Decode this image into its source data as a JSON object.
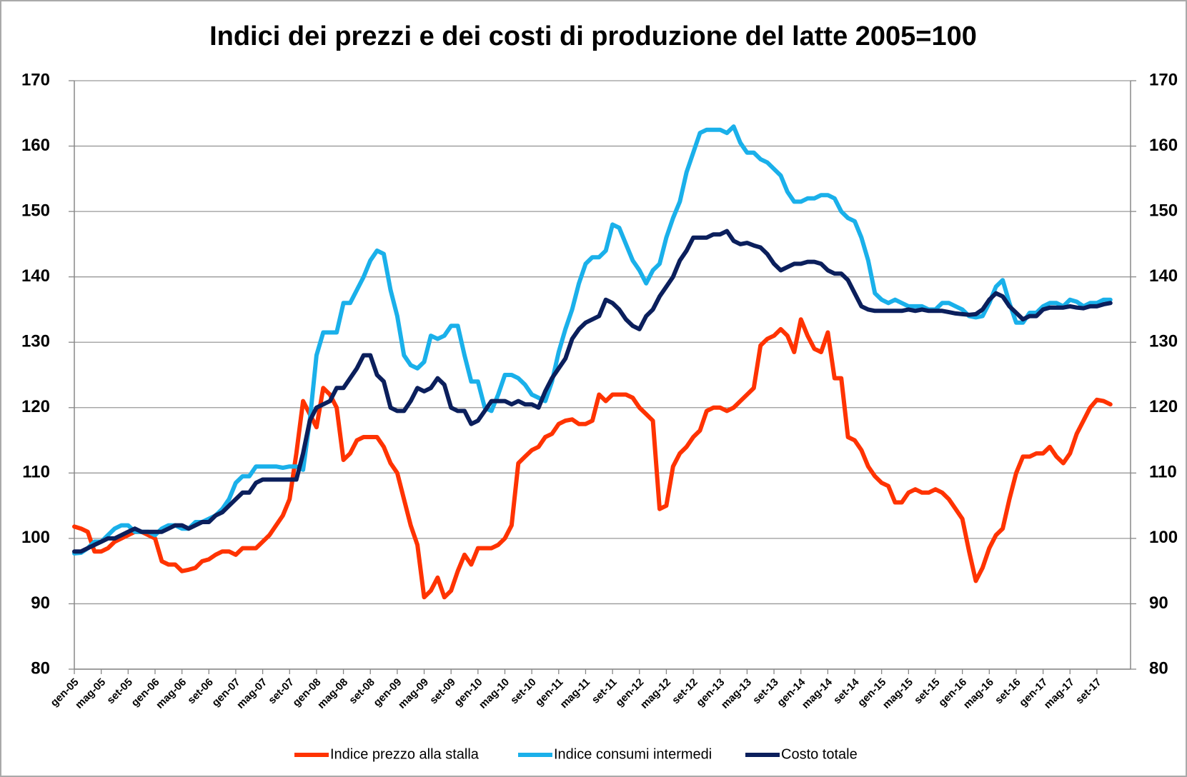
{
  "chart_data": {
    "type": "line",
    "title": "Indici dei prezzi e dei costi di produzione del latte 2005=100",
    "categories": [
      "gen-05",
      null,
      null,
      null,
      "mag-05",
      null,
      null,
      null,
      "set-05",
      null,
      null,
      null,
      "gen-06",
      null,
      null,
      null,
      "mag-06",
      null,
      null,
      null,
      "set-06",
      null,
      null,
      null,
      "gen-07",
      null,
      null,
      null,
      "mag-07",
      null,
      null,
      null,
      "set-07",
      null,
      null,
      null,
      "gen-08",
      null,
      null,
      null,
      "mag-08",
      null,
      null,
      null,
      "set-08",
      null,
      null,
      null,
      "gen-09",
      null,
      null,
      null,
      "mag-09",
      null,
      null,
      null,
      "set-09",
      null,
      null,
      null,
      "gen-10",
      null,
      null,
      null,
      "mag-10",
      null,
      null,
      null,
      "set-10",
      null,
      null,
      null,
      "gen-11",
      null,
      null,
      null,
      "mag-11",
      null,
      null,
      null,
      "set-11",
      null,
      null,
      null,
      "gen-12",
      null,
      null,
      null,
      "mag-12",
      null,
      null,
      null,
      "set-12",
      null,
      null,
      null,
      "gen-13",
      null,
      null,
      null,
      "mag-13",
      null,
      null,
      null,
      "set-13",
      null,
      null,
      null,
      "gen-14",
      null,
      null,
      null,
      "mag-14",
      null,
      null,
      null,
      "set-14",
      null,
      null,
      null,
      "gen-15",
      null,
      null,
      null,
      "mag-15",
      null,
      null,
      null,
      "set-15",
      null,
      null,
      null,
      "gen-16",
      null,
      null,
      null,
      "mag-16",
      null,
      null,
      null,
      "set-16",
      null,
      null,
      null,
      "gen-17",
      null,
      null,
      null,
      "mag-17",
      null,
      null,
      null,
      "set-17",
      null,
      null
    ],
    "series": [
      {
        "name": "Indice prezzo alla stalla",
        "color": "#ff3300",
        "values": [
          101.8,
          101.5,
          101,
          98,
          98,
          98.5,
          99.5,
          100,
          100.5,
          101,
          101,
          100.5,
          100,
          96.5,
          96,
          96,
          95,
          95.2,
          95.5,
          96.5,
          96.8,
          97.5,
          98,
          98,
          97.5,
          98.5,
          98.5,
          98.5,
          99.5,
          100.5,
          102,
          103.5,
          106,
          113,
          121,
          119,
          117,
          123,
          122,
          120,
          112,
          113,
          115,
          115.5,
          115.5,
          115.5,
          114,
          111.5,
          110,
          106,
          102,
          99,
          91,
          92,
          94,
          91,
          92,
          95,
          97.5,
          96,
          98.5,
          98.5,
          98.5,
          99,
          100,
          102,
          111.5,
          112.5,
          113.5,
          114,
          115.5,
          116,
          117.5,
          118,
          118.2,
          117.5,
          117.5,
          118,
          122,
          121,
          122,
          122,
          122,
          121.5,
          120,
          119,
          118,
          104.5,
          105,
          111,
          113,
          114,
          115.5,
          116.5,
          119.5,
          120,
          120,
          119.5,
          120,
          121,
          122,
          123,
          129.5,
          130.5,
          131,
          132,
          131,
          128.5,
          133.5,
          131,
          129,
          128.5,
          131.5,
          124.5,
          124.5,
          115.5,
          115,
          113.5,
          111,
          109.5,
          108.5,
          108,
          105.5,
          105.5,
          107,
          107.5,
          107,
          107,
          107.5,
          107,
          106,
          104.5,
          103,
          98,
          93.5,
          95.5,
          98.5,
          100.5,
          101.5,
          106,
          110,
          112.5,
          112.5,
          113,
          113,
          114,
          112.5,
          111.5,
          113,
          116,
          118,
          120,
          121.2,
          121,
          120.5
        ]
      },
      {
        "name": "Indice consumi intermedi",
        "color": "#1ab0ea",
        "values": [
          97.7,
          97.8,
          98.5,
          99.5,
          99.5,
          100.5,
          101.5,
          102,
          102,
          101,
          101,
          101,
          100.5,
          101.5,
          102,
          102,
          101.5,
          101.5,
          102.5,
          102.5,
          103,
          103.5,
          104.5,
          106,
          108.5,
          109.5,
          109.5,
          111,
          111,
          111,
          111,
          110.8,
          111,
          111,
          110.5,
          118,
          128,
          131.5,
          131.5,
          131.5,
          136,
          136,
          138,
          140,
          142.5,
          144,
          143.5,
          138,
          134,
          128,
          126.5,
          126,
          127,
          131,
          130.5,
          131,
          132.5,
          132.5,
          128,
          124,
          124,
          120,
          119.5,
          122,
          125,
          125,
          124.5,
          123.5,
          122,
          121.5,
          121,
          124,
          128.5,
          132,
          135,
          139,
          142,
          143,
          143,
          144,
          148,
          147.5,
          145,
          142.5,
          141,
          139,
          141,
          142,
          146,
          149,
          151.5,
          156,
          159,
          162,
          162.5,
          162.5,
          162.5,
          162,
          163,
          160.5,
          159,
          159,
          158,
          157.5,
          156.5,
          155.5,
          153,
          151.5,
          151.5,
          152,
          152,
          152.5,
          152.5,
          152,
          150,
          149,
          148.5,
          146,
          142.5,
          137.5,
          136.5,
          136,
          136.5,
          136,
          135.5,
          135.5,
          135.5,
          135,
          135,
          136,
          136,
          135.5,
          135,
          134,
          133.8,
          134,
          136,
          138.5,
          139.5,
          136,
          133,
          133,
          134.5,
          134.5,
          135.5,
          136,
          136,
          135.5,
          136.5,
          136.2,
          135.5,
          136,
          136,
          136.5,
          136.5
        ]
      },
      {
        "name": "Costo totale",
        "color": "#0b1f5c",
        "values": [
          98,
          98,
          98.5,
          99,
          99.5,
          100,
          100,
          100.5,
          101,
          101.5,
          101,
          101,
          101,
          101,
          101.5,
          102,
          102,
          101.5,
          102,
          102.5,
          102.5,
          103.5,
          104,
          105,
          106,
          107,
          107,
          108.5,
          109,
          109,
          109,
          109,
          109,
          109,
          113,
          118,
          120,
          120.5,
          121,
          123,
          123,
          124.5,
          126,
          128,
          128,
          125,
          124,
          120,
          119.5,
          119.5,
          121,
          123,
          122.5,
          123,
          124.5,
          123.5,
          120,
          119.5,
          119.5,
          117.5,
          118,
          119.5,
          121,
          121,
          121,
          120.5,
          121,
          120.5,
          120.5,
          120,
          122.5,
          124.5,
          126,
          127.5,
          130.5,
          132,
          133,
          133.5,
          134,
          136.5,
          136,
          135,
          133.5,
          132.5,
          132,
          134,
          135,
          137,
          138.5,
          140,
          142.5,
          144,
          146,
          146,
          146,
          146.5,
          146.5,
          147,
          145.5,
          145,
          145.2,
          144.8,
          144.5,
          143.5,
          142,
          141,
          141.5,
          142,
          142,
          142.3,
          142.3,
          142,
          141,
          140.5,
          140.5,
          139.5,
          137.5,
          135.5,
          135,
          134.8,
          134.8,
          134.8,
          134.8,
          134.8,
          135,
          134.8,
          135,
          134.8,
          134.8,
          134.8,
          134.6,
          134.4,
          134.3,
          134.2,
          134.3,
          135,
          136.5,
          137.5,
          137,
          135.5,
          134.5,
          133.5,
          134,
          134,
          135,
          135.3,
          135.3,
          135.3,
          135.5,
          135.3,
          135.2,
          135.5,
          135.5,
          135.8,
          136
        ]
      }
    ],
    "ylim": [
      80,
      170
    ],
    "yticks": [
      80,
      90,
      100,
      110,
      120,
      130,
      140,
      150,
      160,
      170
    ],
    "y2lim": [
      80,
      170
    ],
    "y2ticks": [
      80,
      90,
      100,
      110,
      120,
      130,
      140,
      150,
      160,
      170
    ],
    "grid": true,
    "legend": "bottom"
  }
}
